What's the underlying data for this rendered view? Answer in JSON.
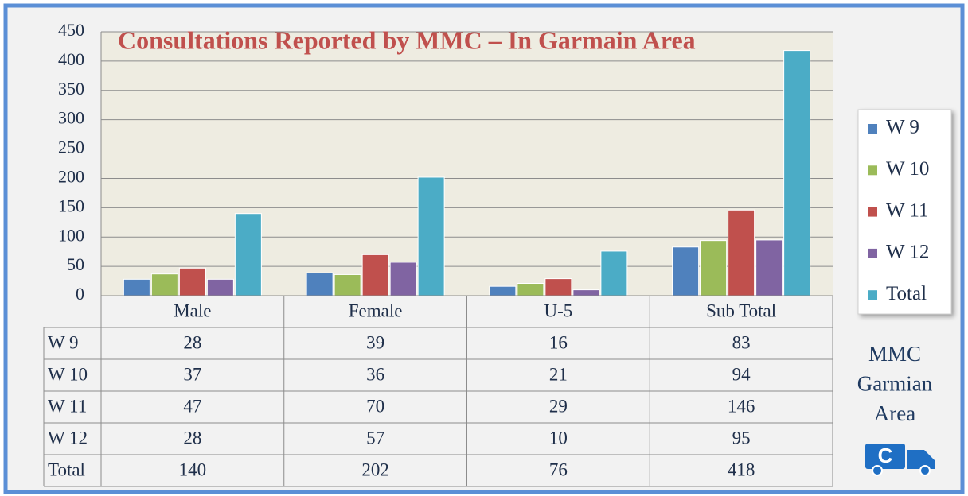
{
  "chart_data": {
    "type": "bar",
    "title": "Consultations Reported by MMC – In Garmain Area",
    "categories": [
      "Male",
      "Female",
      "U-5",
      "Sub Total"
    ],
    "series": [
      {
        "name": "W 9",
        "color": "#4f81bd",
        "values": [
          28,
          39,
          16,
          83
        ]
      },
      {
        "name": "W 10",
        "color": "#9bbb59",
        "values": [
          37,
          36,
          21,
          94
        ]
      },
      {
        "name": "W 11",
        "color": "#c0504d",
        "values": [
          47,
          70,
          29,
          146
        ]
      },
      {
        "name": "W 12",
        "color": "#8064a2",
        "values": [
          28,
          57,
          10,
          95
        ]
      },
      {
        "name": "Total",
        "color": "#4bacc6",
        "values": [
          140,
          202,
          76,
          418
        ]
      }
    ],
    "ylim": [
      0,
      450
    ],
    "yticks": [
      0,
      50,
      100,
      150,
      200,
      250,
      300,
      350,
      400,
      450
    ],
    "grid": true,
    "legend": "right",
    "data_table": true,
    "side_label": [
      "MMC",
      "Garmian",
      "Area"
    ]
  }
}
